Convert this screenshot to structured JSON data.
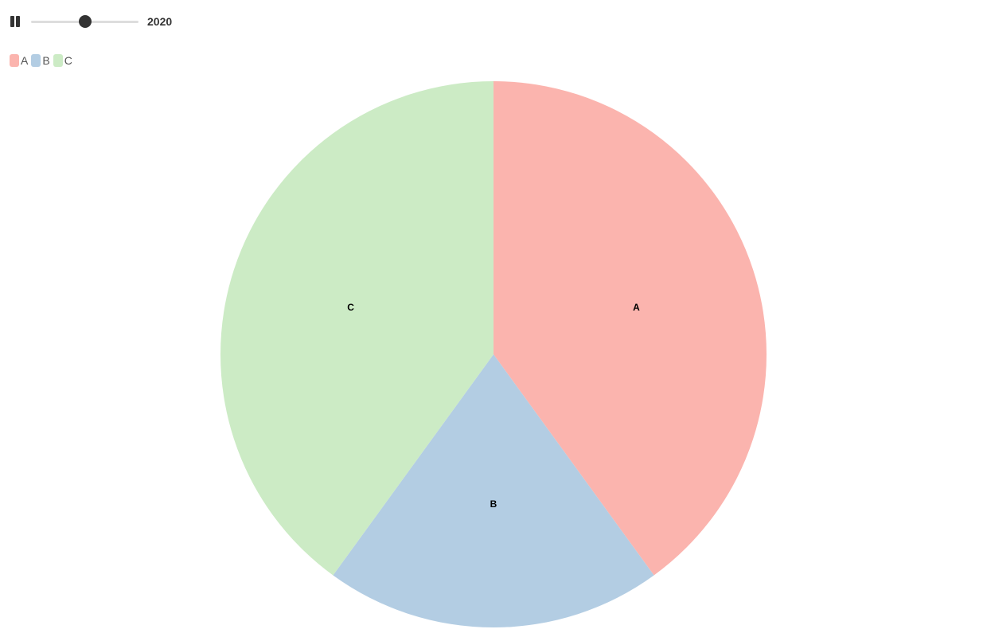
{
  "controls": {
    "play_state": "playing",
    "pause_icon": "pause-icon",
    "year": "2020",
    "slider_fraction": 0.5
  },
  "legend": {
    "items": [
      {
        "label": "A",
        "color": "#fbb4ae"
      },
      {
        "label": "B",
        "color": "#b3cde3"
      },
      {
        "label": "C",
        "color": "#ccebc5"
      }
    ]
  },
  "chart_data": {
    "type": "pie",
    "categories": [
      "A",
      "B",
      "C"
    ],
    "values": [
      40,
      20,
      40
    ],
    "colors": [
      "#fbb4ae",
      "#b3cde3",
      "#ccebc5"
    ],
    "title": "",
    "legend_placement": "top-left",
    "year": "2020"
  }
}
